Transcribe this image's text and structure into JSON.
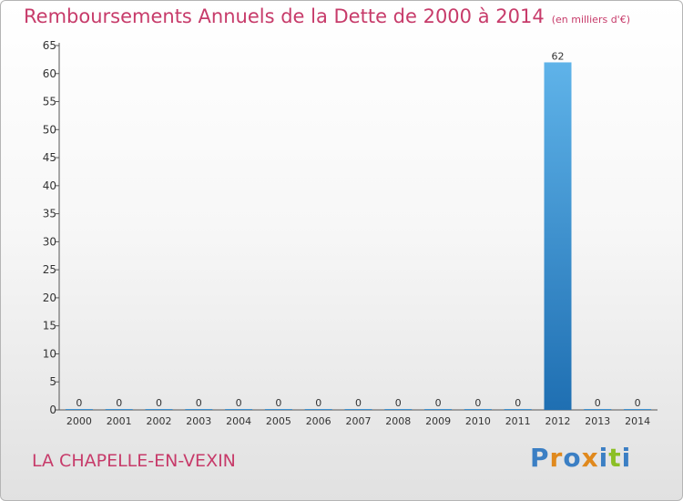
{
  "title": "Remboursements Annuels de la Dette de 2000 à 2014",
  "unit": "(en milliers d'€)",
  "commune": "LA CHAPELLE-EN-VEXIN",
  "logo": [
    "P",
    "r",
    "o",
    "x",
    "i",
    "t",
    "i"
  ],
  "logo_colors": [
    "#3b7fc4",
    "#e0891d",
    "#3b7fc4",
    "#e0891d",
    "#3b7fc4",
    "#8cbf26",
    "#3b7fc4"
  ],
  "colors": {
    "title": "#c73b6a",
    "bar_top": "#5fb3e9",
    "bar_bottom": "#1f6fb2"
  },
  "chart_data": {
    "type": "bar",
    "categories": [
      "2000",
      "2001",
      "2002",
      "2003",
      "2004",
      "2005",
      "2006",
      "2007",
      "2008",
      "2009",
      "2010",
      "2011",
      "2012",
      "2013",
      "2014"
    ],
    "values": [
      0,
      0,
      0,
      0,
      0,
      0,
      0,
      0,
      0,
      0,
      0,
      0,
      62,
      0,
      0
    ],
    "data_labels": [
      "0",
      "0",
      "0",
      "0",
      "0",
      "0",
      "0",
      "0",
      "0",
      "0",
      "0",
      "0",
      "62",
      "0",
      "0"
    ],
    "yticks": [
      0,
      5,
      10,
      15,
      20,
      25,
      30,
      35,
      40,
      45,
      50,
      55,
      60,
      65
    ],
    "ylim": [
      0,
      65
    ],
    "grid": false
  }
}
